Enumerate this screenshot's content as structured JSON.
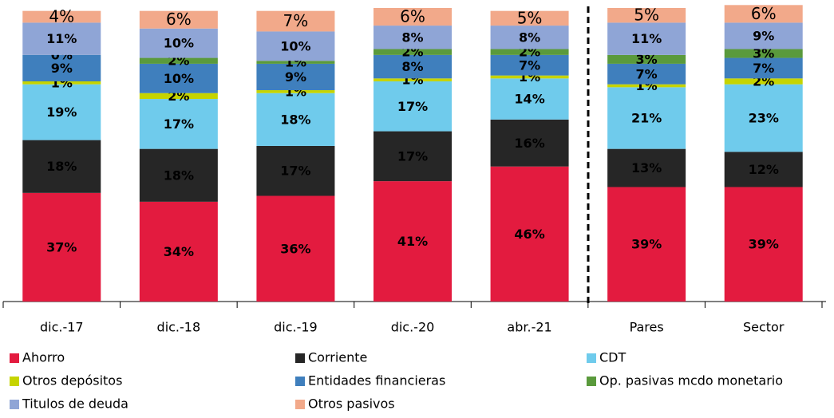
{
  "chart_data": {
    "type": "stacked-bar",
    "categories": [
      "dic.-17",
      "dic.-18",
      "dic.-19",
      "dic.-20",
      "abr.-21",
      "Pares",
      "Sector"
    ],
    "series": [
      {
        "name": "Ahorro",
        "color": "#e31b3f",
        "values": [
          37,
          34,
          36,
          41,
          46,
          39,
          39
        ],
        "value_labels": [
          "37%",
          "34%",
          "36%",
          "41%",
          "46%",
          "39%",
          "39%"
        ]
      },
      {
        "name": "Corriente",
        "color": "#262626",
        "values": [
          18,
          18,
          17,
          17,
          16,
          13,
          12
        ],
        "value_labels": [
          "18%",
          "18%",
          "17%",
          "17%",
          "16%",
          "13%",
          "12%"
        ]
      },
      {
        "name": "CDT",
        "color": "#6fcbec",
        "values": [
          19,
          17,
          18,
          17,
          14,
          21,
          23
        ],
        "value_labels": [
          "19%",
          "17%",
          "18%",
          "17%",
          "14%",
          "21%",
          "23%"
        ]
      },
      {
        "name": "Otros depósitos",
        "color": "#c6d400",
        "values": [
          1,
          2,
          1,
          1,
          1,
          1,
          2
        ],
        "value_labels": [
          "1%",
          "2%",
          "1%",
          "1%",
          "1%",
          "1%",
          "2%"
        ]
      },
      {
        "name": "Entidades financieras",
        "color": "#3f7fbd",
        "values": [
          9,
          10,
          9,
          8,
          7,
          7,
          7
        ],
        "value_labels": [
          "9%",
          "10%",
          "9%",
          "8%",
          "7%",
          "7%",
          "7%"
        ]
      },
      {
        "name": "Op. pasivas mcdo monetario",
        "color": "#5a9a3c",
        "values": [
          0,
          2,
          1,
          2,
          2,
          3,
          3
        ],
        "value_labels": [
          "0%",
          "2%",
          "1%",
          "2%",
          "2%",
          "3%",
          "3%"
        ]
      },
      {
        "name": "Titulos de deuda",
        "color": "#8fa5d6",
        "values": [
          11,
          10,
          10,
          8,
          8,
          11,
          9
        ],
        "value_labels": [
          "11%",
          "10%",
          "10%",
          "8%",
          "8%",
          "11%",
          "9%"
        ]
      },
      {
        "name": "Otros pasivos",
        "color": "#f2a98a",
        "values": [
          4,
          6,
          7,
          6,
          5,
          5,
          6
        ],
        "value_labels": [
          "4%",
          "6%",
          "7%",
          "6%",
          "5%",
          "5%",
          "6%"
        ]
      }
    ]
  }
}
